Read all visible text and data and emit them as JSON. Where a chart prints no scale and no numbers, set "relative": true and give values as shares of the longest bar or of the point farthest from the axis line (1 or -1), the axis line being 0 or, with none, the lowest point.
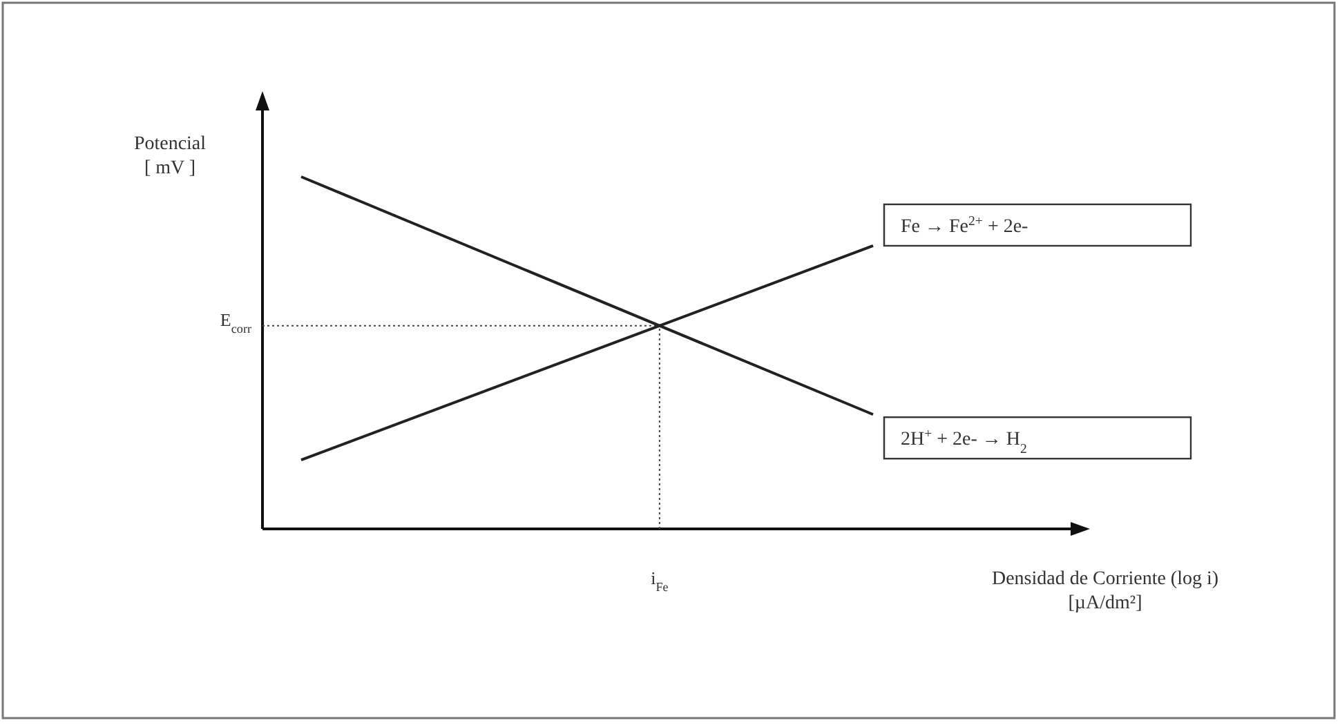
{
  "chart_data": {
    "type": "line",
    "relative": true,
    "xlabel": "Densidad de Corriente (log i)\n[µA/dm²]",
    "ylabel": "Potencial\n[ mV ]",
    "categories": [
      null,
      null
    ],
    "series": [
      {
        "name": "2H$^{+}$  +  2e-  → H$_{2}$",
        "color": "#222222",
        "values": [
          1,
          0.325
        ]
      },
      {
        "name": "Fe  →  Fe$^{2+}$  +  2e-",
        "color": "#222222",
        "values": [
          0.196,
          0.804
        ]
      }
    ],
    "annotations": [
      "E$_{corr}$",
      "i$_{Fe}$"
    ],
    "marker": "none",
    "line_style": "solid",
    "grid": false
  }
}
